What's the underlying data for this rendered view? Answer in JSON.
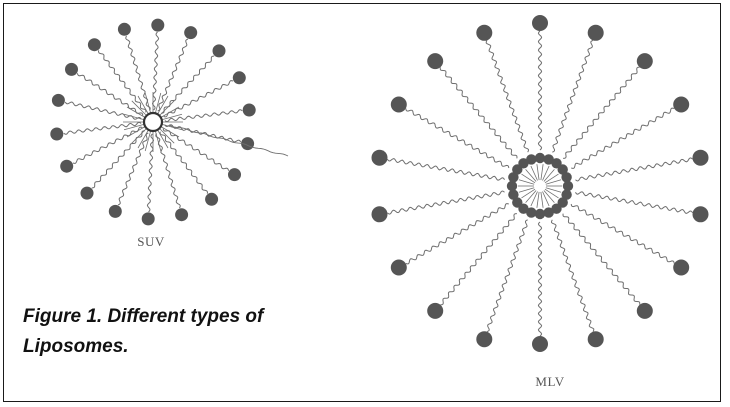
{
  "figure": {
    "caption": "Figure 1. Different types of Liposomes.",
    "structures": [
      {
        "label": "SUV"
      },
      {
        "label": "MLV"
      }
    ]
  },
  "colors": {
    "head_fill": "#555555",
    "tail_stroke": "#6e6e6e",
    "frame": "#1a1a1a"
  }
}
